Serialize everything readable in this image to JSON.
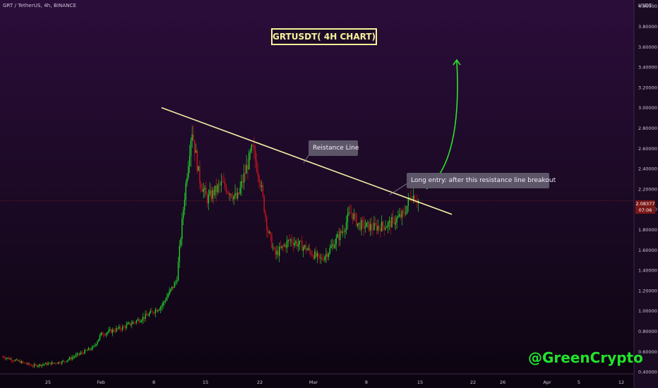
{
  "header": {
    "symbol_info": "GRT / TetherUS, 4h, BINANCE",
    "currency": "USDT"
  },
  "title": "GRTUSDT( 4H CHART)",
  "annotations": {
    "resistance": "Reistance Line",
    "entry": "Long entry: after this resistance line breakout"
  },
  "watermark": "@GreenCrypto",
  "last_price": {
    "price": "2.08377",
    "countdown": "07:06"
  },
  "colors": {
    "up": "#22d42a",
    "down": "#c8161e",
    "resistance_line": "#f5f2a6",
    "breakout_arrow": "#2ee32c",
    "title": "#f4f39a",
    "price_line": "#8a2222"
  },
  "chart_data": {
    "type": "candlestick",
    "title": "GRTUSDT( 4H CHART)",
    "symbol": "GRT / TetherUS",
    "timeframe": "4h",
    "exchange": "BINANCE",
    "y_axis": {
      "currency": "USDT",
      "range": [
        0.38,
        4.06
      ],
      "ticks": [
        "0.40000",
        "0.60000",
        "0.80000",
        "1.00000",
        "1.20000",
        "1.40000",
        "1.60000",
        "1.80000",
        "2.00000",
        "2.20000",
        "2.40000",
        "2.60000",
        "2.80000",
        "3.00000",
        "3.20000",
        "3.40000",
        "3.60000",
        "3.80000",
        "4.00000"
      ]
    },
    "x_axis": {
      "ticks": [
        "25",
        "Feb",
        "8",
        "15",
        "22",
        "Mar",
        "8",
        "15",
        "22",
        "26",
        "Apr",
        "5",
        "12"
      ]
    },
    "last_price": 2.08377,
    "price_path": [
      {
        "date": "2021-01-19",
        "price": 0.55
      },
      {
        "date": "2021-01-23",
        "price": 0.46
      },
      {
        "date": "2021-01-27",
        "price": 0.5
      },
      {
        "date": "2021-01-31",
        "price": 0.64
      },
      {
        "date": "2021-02-01",
        "price": 0.77
      },
      {
        "date": "2021-02-04",
        "price": 0.84
      },
      {
        "date": "2021-02-07",
        "price": 0.95
      },
      {
        "date": "2021-02-09",
        "price": 1.05
      },
      {
        "date": "2021-02-11",
        "price": 1.3
      },
      {
        "date": "2021-02-12",
        "price": 2.1
      },
      {
        "date": "2021-02-13",
        "price": 2.8
      },
      {
        "date": "2021-02-14",
        "price": 2.3
      },
      {
        "date": "2021-02-15",
        "price": 2.1
      },
      {
        "date": "2021-02-17",
        "price": 2.25
      },
      {
        "date": "2021-02-19",
        "price": 2.1
      },
      {
        "date": "2021-02-21",
        "price": 2.6
      },
      {
        "date": "2021-02-22",
        "price": 2.3
      },
      {
        "date": "2021-02-23",
        "price": 1.8
      },
      {
        "date": "2021-02-24",
        "price": 1.55
      },
      {
        "date": "2021-02-26",
        "price": 1.7
      },
      {
        "date": "2021-02-28",
        "price": 1.62
      },
      {
        "date": "2021-03-02",
        "price": 1.5
      },
      {
        "date": "2021-03-03",
        "price": 1.58
      },
      {
        "date": "2021-03-05",
        "price": 1.8
      },
      {
        "date": "2021-03-06",
        "price": 1.98
      },
      {
        "date": "2021-03-07",
        "price": 1.85
      },
      {
        "date": "2021-03-09",
        "price": 1.82
      },
      {
        "date": "2021-03-11",
        "price": 1.85
      },
      {
        "date": "2021-03-13",
        "price": 1.95
      },
      {
        "date": "2021-03-14",
        "price": 2.15
      },
      {
        "date": "2021-03-15",
        "price": 2.08
      }
    ],
    "resistance_line": {
      "label": "Reistance Line",
      "start": {
        "date": "2021-02-09",
        "price": 3.0
      },
      "end": {
        "date": "2021-03-19",
        "price": 1.95
      }
    },
    "breakout_projection": {
      "label": "Long entry: after this resistance line breakout",
      "start": {
        "date": "2021-03-16",
        "price": 2.2
      },
      "end": {
        "date": "2021-03-20",
        "price": 3.47
      }
    }
  }
}
